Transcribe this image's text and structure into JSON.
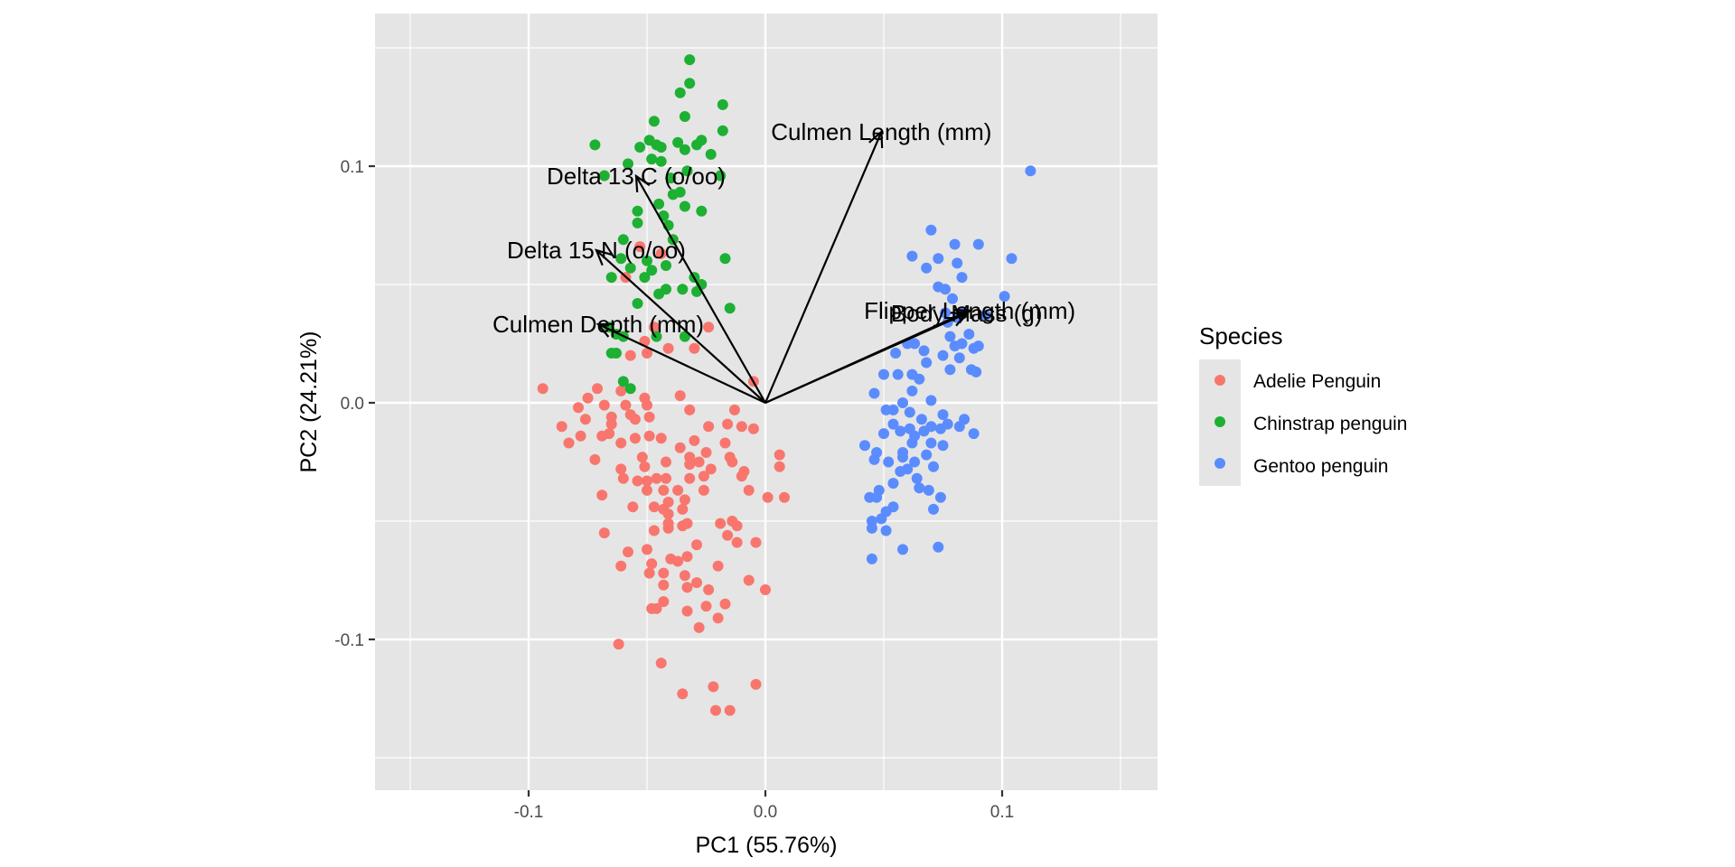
{
  "chart_data": {
    "type": "scatter",
    "subtype": "pca-biplot",
    "title": "",
    "xlabel": "PC1 (55.76%)",
    "ylabel": "PC2 (24.21%)",
    "xlim": [
      -0.165,
      0.165
    ],
    "ylim": [
      -0.164,
      0.164
    ],
    "x_ticks": [
      -0.1,
      0.0,
      0.1
    ],
    "x_tick_labels": [
      "-0.1",
      "0.0",
      "0.1"
    ],
    "y_ticks": [
      -0.1,
      0.0,
      0.1
    ],
    "y_tick_labels": [
      "-0.1",
      "0.0",
      "0.1"
    ],
    "grid": true,
    "background": "#E5E5E5",
    "legend": {
      "title": "Species",
      "position": "right",
      "entries": [
        "Adelie Penguin",
        "Chinstrap penguin",
        "Gentoo penguin"
      ]
    },
    "series": [
      {
        "name": "Adelie Penguin",
        "color": "#F8766D",
        "points": [
          [
            -0.094,
            0.006
          ],
          [
            -0.071,
            0.006
          ],
          [
            -0.061,
            0.005
          ],
          [
            -0.036,
            0.003
          ],
          [
            -0.051,
            0.002
          ],
          [
            -0.075,
            0.002
          ],
          [
            -0.079,
            -0.002
          ],
          [
            -0.068,
            -0.001
          ],
          [
            -0.059,
            -0.001
          ],
          [
            -0.05,
            -0.001
          ],
          [
            -0.032,
            -0.003
          ],
          [
            -0.013,
            -0.003
          ],
          [
            -0.086,
            -0.01
          ],
          [
            -0.076,
            -0.007
          ],
          [
            -0.065,
            -0.006
          ],
          [
            -0.065,
            -0.009
          ],
          [
            -0.057,
            -0.005
          ],
          [
            -0.055,
            -0.007
          ],
          [
            -0.049,
            -0.006
          ],
          [
            -0.024,
            -0.01
          ],
          [
            -0.016,
            -0.009
          ],
          [
            -0.01,
            -0.01
          ],
          [
            -0.005,
            -0.011
          ],
          [
            -0.083,
            -0.017
          ],
          [
            -0.078,
            -0.014
          ],
          [
            -0.069,
            -0.014
          ],
          [
            -0.066,
            -0.013
          ],
          [
            -0.061,
            -0.017
          ],
          [
            -0.055,
            -0.015
          ],
          [
            -0.049,
            -0.014
          ],
          [
            -0.044,
            -0.015
          ],
          [
            -0.03,
            -0.016
          ],
          [
            -0.017,
            -0.017
          ],
          [
            -0.036,
            -0.019
          ],
          [
            -0.025,
            -0.021
          ],
          [
            -0.032,
            -0.023
          ],
          [
            -0.028,
            -0.025
          ],
          [
            -0.052,
            -0.023
          ],
          [
            -0.042,
            -0.025
          ],
          [
            -0.072,
            -0.024
          ],
          [
            -0.061,
            -0.028
          ],
          [
            -0.051,
            -0.027
          ],
          [
            -0.032,
            -0.026
          ],
          [
            -0.023,
            -0.028
          ],
          [
            -0.015,
            -0.023
          ],
          [
            -0.014,
            -0.025
          ],
          [
            0.006,
            -0.022
          ],
          [
            0.006,
            -0.027
          ],
          [
            -0.009,
            -0.029
          ],
          [
            -0.01,
            -0.031
          ],
          [
            -0.06,
            -0.032
          ],
          [
            -0.054,
            -0.033
          ],
          [
            -0.05,
            -0.033
          ],
          [
            -0.046,
            -0.032
          ],
          [
            -0.042,
            -0.032
          ],
          [
            -0.026,
            -0.031
          ],
          [
            -0.032,
            -0.032
          ],
          [
            -0.05,
            -0.037
          ],
          [
            -0.043,
            -0.037
          ],
          [
            -0.037,
            -0.037
          ],
          [
            -0.026,
            -0.037
          ],
          [
            -0.007,
            -0.037
          ],
          [
            0.001,
            -0.04
          ],
          [
            0.008,
            -0.04
          ],
          [
            -0.069,
            -0.039
          ],
          [
            -0.056,
            -0.044
          ],
          [
            -0.047,
            -0.044
          ],
          [
            -0.041,
            -0.042
          ],
          [
            -0.034,
            -0.041
          ],
          [
            -0.035,
            -0.045
          ],
          [
            -0.043,
            -0.045
          ],
          [
            -0.041,
            -0.047
          ],
          [
            -0.041,
            -0.051
          ],
          [
            -0.041,
            -0.053
          ],
          [
            -0.035,
            -0.052
          ],
          [
            -0.033,
            -0.051
          ],
          [
            -0.047,
            -0.054
          ],
          [
            -0.019,
            -0.051
          ],
          [
            -0.014,
            -0.05
          ],
          [
            -0.012,
            -0.052
          ],
          [
            -0.068,
            -0.055
          ],
          [
            -0.016,
            -0.056
          ],
          [
            -0.012,
            -0.059
          ],
          [
            -0.004,
            -0.059
          ],
          [
            -0.058,
            -0.063
          ],
          [
            -0.05,
            -0.062
          ],
          [
            -0.029,
            -0.06
          ],
          [
            -0.033,
            -0.065
          ],
          [
            -0.061,
            -0.069
          ],
          [
            -0.048,
            -0.068
          ],
          [
            -0.049,
            -0.072
          ],
          [
            -0.04,
            -0.066
          ],
          [
            -0.037,
            -0.067
          ],
          [
            -0.02,
            -0.069
          ],
          [
            -0.043,
            -0.072
          ],
          [
            -0.043,
            -0.077
          ],
          [
            -0.034,
            -0.073
          ],
          [
            -0.029,
            -0.076
          ],
          [
            -0.033,
            -0.078
          ],
          [
            -0.024,
            -0.079
          ],
          [
            -0.007,
            -0.075
          ],
          [
            0.0,
            -0.079
          ],
          [
            -0.043,
            -0.084
          ],
          [
            -0.048,
            -0.087
          ],
          [
            -0.046,
            -0.087
          ],
          [
            -0.033,
            -0.088
          ],
          [
            -0.025,
            -0.086
          ],
          [
            -0.017,
            -0.085
          ],
          [
            -0.02,
            -0.091
          ],
          [
            -0.028,
            -0.095
          ],
          [
            -0.062,
            -0.102
          ],
          [
            -0.044,
            -0.11
          ],
          [
            -0.035,
            -0.123
          ],
          [
            -0.022,
            -0.12
          ],
          [
            -0.004,
            -0.119
          ],
          [
            -0.021,
            -0.13
          ],
          [
            -0.015,
            -0.13
          ],
          [
            -0.053,
            0.066
          ],
          [
            -0.044,
            0.063
          ],
          [
            -0.059,
            0.053
          ],
          [
            -0.047,
            0.032
          ],
          [
            -0.024,
            0.032
          ],
          [
            -0.051,
            0.026
          ],
          [
            -0.041,
            0.023
          ],
          [
            -0.03,
            0.023
          ],
          [
            -0.05,
            0.021
          ],
          [
            -0.057,
            0.02
          ],
          [
            -0.005,
            0.009
          ]
        ]
      },
      {
        "name": "Chinstrap penguin",
        "color": "#1DB033",
        "points": [
          [
            -0.032,
            0.145
          ],
          [
            -0.032,
            0.135
          ],
          [
            -0.036,
            0.131
          ],
          [
            -0.018,
            0.126
          ],
          [
            -0.034,
            0.121
          ],
          [
            -0.047,
            0.119
          ],
          [
            -0.018,
            0.115
          ],
          [
            -0.072,
            0.109
          ],
          [
            -0.053,
            0.108
          ],
          [
            -0.049,
            0.111
          ],
          [
            -0.046,
            0.109
          ],
          [
            -0.044,
            0.108
          ],
          [
            -0.037,
            0.11
          ],
          [
            -0.034,
            0.107
          ],
          [
            -0.029,
            0.109
          ],
          [
            -0.027,
            0.111
          ],
          [
            -0.023,
            0.105
          ],
          [
            -0.058,
            0.101
          ],
          [
            -0.048,
            0.103
          ],
          [
            -0.044,
            0.102
          ],
          [
            -0.068,
            0.096
          ],
          [
            -0.033,
            0.098
          ],
          [
            -0.04,
            0.095
          ],
          [
            -0.019,
            0.096
          ],
          [
            -0.039,
            0.088
          ],
          [
            -0.036,
            0.089
          ],
          [
            -0.045,
            0.084
          ],
          [
            -0.034,
            0.083
          ],
          [
            -0.027,
            0.081
          ],
          [
            -0.054,
            0.081
          ],
          [
            -0.054,
            0.076
          ],
          [
            -0.043,
            0.079
          ],
          [
            -0.041,
            0.075
          ],
          [
            -0.06,
            0.069
          ],
          [
            -0.039,
            0.069
          ],
          [
            -0.061,
            0.061
          ],
          [
            -0.05,
            0.06
          ],
          [
            -0.042,
            0.058
          ],
          [
            -0.057,
            0.057
          ],
          [
            -0.048,
            0.056
          ],
          [
            -0.065,
            0.053
          ],
          [
            -0.051,
            0.053
          ],
          [
            -0.03,
            0.053
          ],
          [
            -0.027,
            0.05
          ],
          [
            -0.017,
            0.061
          ],
          [
            -0.045,
            0.046
          ],
          [
            -0.042,
            0.048
          ],
          [
            -0.035,
            0.048
          ],
          [
            -0.029,
            0.047
          ],
          [
            -0.054,
            0.042
          ],
          [
            -0.015,
            0.04
          ],
          [
            -0.063,
            0.029
          ],
          [
            -0.06,
            0.028
          ],
          [
            -0.046,
            0.028
          ],
          [
            -0.034,
            0.028
          ],
          [
            -0.063,
            0.021
          ],
          [
            -0.06,
            0.009
          ],
          [
            -0.057,
            0.006
          ],
          [
            -0.066,
            0.032
          ],
          [
            -0.065,
            0.021
          ]
        ]
      },
      {
        "name": "Gentoo penguin",
        "color": "#5A8CFF",
        "points": [
          [
            0.112,
            0.098
          ],
          [
            0.07,
            0.073
          ],
          [
            0.08,
            0.067
          ],
          [
            0.09,
            0.067
          ],
          [
            0.062,
            0.062
          ],
          [
            0.073,
            0.061
          ],
          [
            0.081,
            0.059
          ],
          [
            0.068,
            0.057
          ],
          [
            0.104,
            0.061
          ],
          [
            0.083,
            0.053
          ],
          [
            0.073,
            0.049
          ],
          [
            0.076,
            0.048
          ],
          [
            0.101,
            0.045
          ],
          [
            0.079,
            0.044
          ],
          [
            0.076,
            0.038
          ],
          [
            0.081,
            0.036
          ],
          [
            0.083,
            0.038
          ],
          [
            0.077,
            0.034
          ],
          [
            0.093,
            0.037
          ],
          [
            0.078,
            0.028
          ],
          [
            0.086,
            0.029
          ],
          [
            0.06,
            0.025
          ],
          [
            0.063,
            0.025
          ],
          [
            0.067,
            0.022
          ],
          [
            0.055,
            0.021
          ],
          [
            0.075,
            0.02
          ],
          [
            0.08,
            0.024
          ],
          [
            0.083,
            0.025
          ],
          [
            0.09,
            0.024
          ],
          [
            0.088,
            0.023
          ],
          [
            0.082,
            0.019
          ],
          [
            0.068,
            0.017
          ],
          [
            0.078,
            0.014
          ],
          [
            0.087,
            0.014
          ],
          [
            0.089,
            0.013
          ],
          [
            0.05,
            0.012
          ],
          [
            0.056,
            0.012
          ],
          [
            0.062,
            0.012
          ],
          [
            0.065,
            0.01
          ],
          [
            0.046,
            0.004
          ],
          [
            0.062,
            0.005
          ],
          [
            0.07,
            0.001
          ],
          [
            0.051,
            -0.003
          ],
          [
            0.054,
            -0.003
          ],
          [
            0.058,
            0.0
          ],
          [
            0.061,
            -0.004
          ],
          [
            0.066,
            -0.007
          ],
          [
            0.075,
            -0.005
          ],
          [
            0.054,
            -0.009
          ],
          [
            0.061,
            -0.011
          ],
          [
            0.057,
            -0.012
          ],
          [
            0.063,
            -0.014
          ],
          [
            0.067,
            -0.012
          ],
          [
            0.07,
            -0.01
          ],
          [
            0.077,
            -0.009
          ],
          [
            0.074,
            -0.011
          ],
          [
            0.084,
            -0.007
          ],
          [
            0.082,
            -0.01
          ],
          [
            0.088,
            -0.013
          ],
          [
            0.05,
            -0.013
          ],
          [
            0.062,
            -0.017
          ],
          [
            0.07,
            -0.017
          ],
          [
            0.075,
            -0.018
          ],
          [
            0.042,
            -0.018
          ],
          [
            0.047,
            -0.021
          ],
          [
            0.046,
            -0.024
          ],
          [
            0.052,
            -0.025
          ],
          [
            0.058,
            -0.021
          ],
          [
            0.058,
            -0.023
          ],
          [
            0.063,
            -0.025
          ],
          [
            0.068,
            -0.022
          ],
          [
            0.071,
            -0.027
          ],
          [
            0.057,
            -0.029
          ],
          [
            0.06,
            -0.028
          ],
          [
            0.064,
            -0.032
          ],
          [
            0.054,
            -0.034
          ],
          [
            0.065,
            -0.036
          ],
          [
            0.069,
            -0.037
          ],
          [
            0.074,
            -0.04
          ],
          [
            0.048,
            -0.037
          ],
          [
            0.044,
            -0.04
          ],
          [
            0.047,
            -0.04
          ],
          [
            0.054,
            -0.044
          ],
          [
            0.051,
            -0.046
          ],
          [
            0.049,
            -0.049
          ],
          [
            0.045,
            -0.05
          ],
          [
            0.045,
            -0.053
          ],
          [
            0.051,
            -0.054
          ],
          [
            0.058,
            -0.062
          ],
          [
            0.073,
            -0.061
          ],
          [
            0.071,
            -0.045
          ],
          [
            0.045,
            -0.066
          ]
        ]
      }
    ],
    "loadings": [
      {
        "name": "Culmen Length (mm)",
        "pc1": 0.049,
        "pc2": 0.1145
      },
      {
        "name": "Culmen Depth (mm)",
        "pc1": -0.0706,
        "pc2": 0.0332
      },
      {
        "name": "Flipper Length (mm)",
        "pc1": 0.0863,
        "pc2": 0.039
      },
      {
        "name": "Body Mass (g)",
        "pc1": 0.085,
        "pc2": 0.0378
      },
      {
        "name": "Delta 15 N (o/oo)",
        "pc1": -0.0714,
        "pc2": 0.0645
      },
      {
        "name": "Delta 13 C (o/oo)",
        "pc1": -0.0546,
        "pc2": 0.0958
      }
    ]
  }
}
